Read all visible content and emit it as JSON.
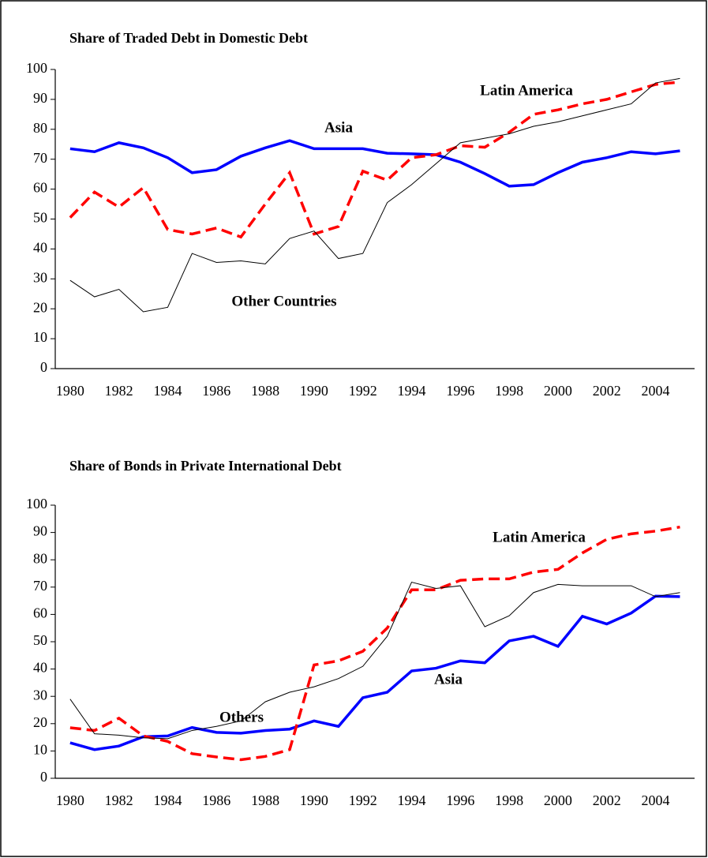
{
  "chart_data": [
    {
      "type": "line",
      "title": "Share of Traded Debt in Domestic Debt",
      "x": [
        1980,
        1981,
        1982,
        1983,
        1984,
        1985,
        1986,
        1987,
        1988,
        1989,
        1990,
        1991,
        1992,
        1993,
        1994,
        1995,
        1996,
        1997,
        1998,
        1999,
        2000,
        2001,
        2002,
        2003,
        2004,
        2005
      ],
      "xlim": [
        1979.39,
        2005.6
      ],
      "xticks": [
        1980,
        1982,
        1984,
        1986,
        1988,
        1990,
        1992,
        1994,
        1996,
        1998,
        2000,
        2002,
        2004
      ],
      "ylim": [
        0,
        100
      ],
      "yticks": [
        0,
        10,
        20,
        30,
        40,
        50,
        60,
        70,
        80,
        90,
        100
      ],
      "series": [
        {
          "name": "Asia",
          "color": "#0000ff",
          "dashed": false,
          "values": [
            73.5,
            72.5,
            75.5,
            73.8,
            70.5,
            65.5,
            66.5,
            71,
            73.8,
            76.2,
            73.5,
            73.5,
            73.5,
            72,
            71.8,
            71.5,
            69,
            65.2,
            61,
            61.5,
            65.5,
            69,
            70.5,
            72.5,
            71.8,
            72.8
          ]
        },
        {
          "name": "Latin America",
          "color": "#ff0000",
          "dashed": true,
          "values": [
            50.5,
            59,
            54,
            60.5,
            46.5,
            45,
            47,
            44,
            55,
            65.5,
            45,
            47.5,
            66,
            63,
            70.5,
            71.5,
            74.5,
            74,
            79,
            85,
            86.5,
            88.5,
            90,
            92.5,
            95,
            95.8
          ]
        },
        {
          "name": "Other Countries",
          "color": "#000000",
          "dashed": false,
          "values": [
            29.5,
            24,
            26.5,
            19,
            20.5,
            38.5,
            35.5,
            36,
            35,
            43.5,
            46,
            36.8,
            38.5,
            55.5,
            61.5,
            68.5,
            75.5,
            77,
            78.5,
            81,
            82.5,
            84.5,
            86.5,
            88.5,
            95.5,
            97
          ]
        }
      ],
      "annotations": [
        "Latin America",
        "Asia",
        "Other Countries"
      ]
    },
    {
      "type": "line",
      "title": "Share of Bonds in Private International Debt",
      "x": [
        1980,
        1981,
        1982,
        1983,
        1984,
        1985,
        1986,
        1987,
        1988,
        1989,
        1990,
        1991,
        1992,
        1993,
        1994,
        1995,
        1996,
        1997,
        1998,
        1999,
        2000,
        2001,
        2002,
        2003,
        2004,
        2005
      ],
      "xlim": [
        1979.39,
        2005.6
      ],
      "xticks": [
        1980,
        1982,
        1984,
        1986,
        1988,
        1990,
        1992,
        1994,
        1996,
        1998,
        2000,
        2002,
        2004
      ],
      "ylim": [
        0,
        100
      ],
      "yticks": [
        0,
        10,
        20,
        30,
        40,
        50,
        60,
        70,
        80,
        90,
        100
      ],
      "series": [
        {
          "name": "Asia",
          "color": "#0000ff",
          "dashed": false,
          "values": [
            13,
            10.5,
            11.8,
            15.2,
            15.5,
            18.6,
            16.8,
            16.5,
            17.5,
            18,
            21,
            19,
            29.5,
            31.5,
            39.3,
            40.3,
            43,
            42.3,
            50.3,
            52,
            48.3,
            59.3,
            56.5,
            60.5,
            66.7,
            66.5
          ]
        },
        {
          "name": "Latin America",
          "color": "#ff0000",
          "dashed": true,
          "values": [
            18.5,
            17.5,
            22,
            15.5,
            13.5,
            9,
            7.8,
            6.8,
            8,
            10.5,
            41.5,
            43,
            46.5,
            55,
            69,
            69,
            72.5,
            73,
            73,
            75.5,
            76.5,
            82.5,
            87.5,
            89.5,
            90.5,
            92
          ]
        },
        {
          "name": "Others",
          "color": "#000000",
          "dashed": false,
          "values": [
            29,
            16.3,
            15.8,
            14.8,
            14.5,
            17.5,
            19,
            21,
            28,
            31.5,
            33.5,
            36.5,
            41,
            52,
            71.8,
            69.5,
            70.5,
            55.5,
            59.5,
            68,
            71,
            70.5,
            70.5,
            70.5,
            66.5,
            68
          ]
        }
      ],
      "annotations": [
        "Latin America",
        "Asia",
        "Others"
      ]
    }
  ]
}
